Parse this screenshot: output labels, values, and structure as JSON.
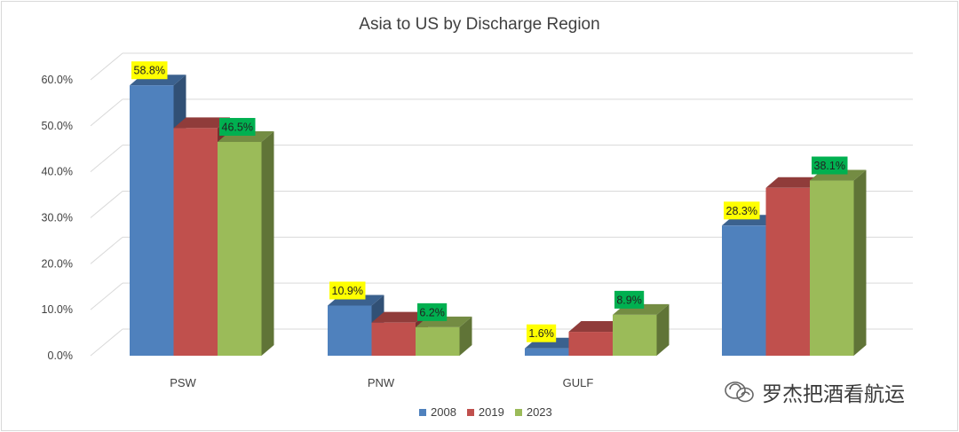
{
  "chart_data": {
    "type": "bar",
    "title": "Asia to US by Discharge Region",
    "categories": [
      "PSW",
      "PNW",
      "GULF",
      ""
    ],
    "series": [
      {
        "name": "2008",
        "values": [
          58.8,
          10.9,
          1.6,
          28.3
        ],
        "labels": [
          "58.8%",
          "10.9%",
          "1.6%",
          "28.3%"
        ]
      },
      {
        "name": "2019",
        "values": [
          49.5,
          7.2,
          5.2,
          36.5
        ],
        "labels": [
          "",
          "",
          "",
          ""
        ]
      },
      {
        "name": "2023",
        "values": [
          46.5,
          6.2,
          8.9,
          38.1
        ],
        "labels": [
          "46.5%",
          "6.2%",
          "8.9%",
          "38.1%"
        ]
      }
    ],
    "y_ticks": [
      "0.0%",
      "10.0%",
      "20.0%",
      "30.0%",
      "40.0%",
      "50.0%",
      "60.0%"
    ],
    "ylim": [
      0,
      65
    ],
    "grid": true,
    "legend_position": "bottom",
    "three_d": true
  },
  "colors": {
    "2008": "#4f81bd",
    "2019": "#c0504d",
    "2023": "#9bbb59",
    "label_2008": "#ffff00",
    "label_2023": "#00b050",
    "grid": "#d9d9d9",
    "text": "#404040"
  },
  "watermark": {
    "text": "罗杰把酒看航运",
    "icon": "wechat-official-account-icon"
  }
}
